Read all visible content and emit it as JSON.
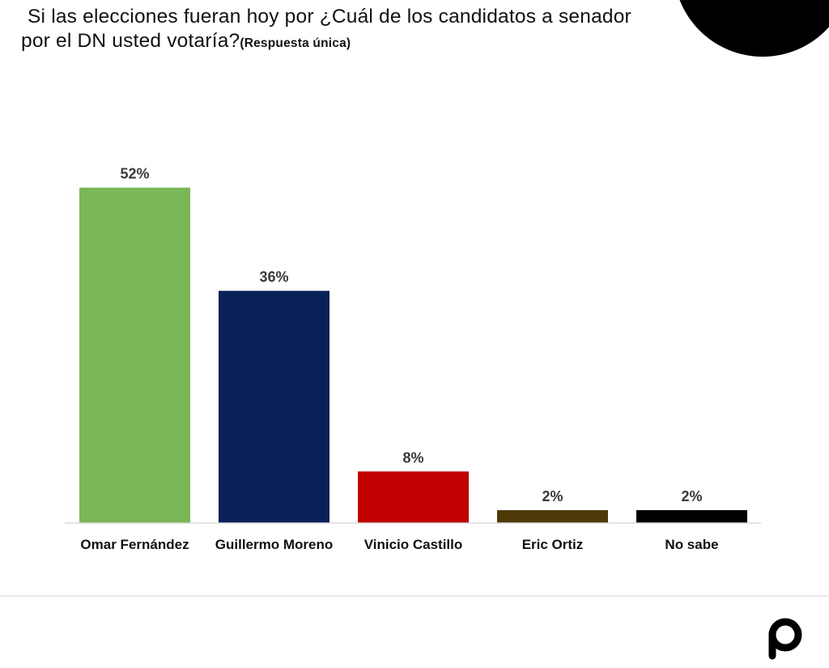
{
  "title": {
    "line1": "Si las elecciones fueran hoy por ¿Cuál de los candidatos a senador",
    "line2": "por el DN usted votaría?",
    "subtitle": "(Respuesta única)"
  },
  "chart_data": {
    "type": "bar",
    "categories": [
      "Omar Fernández",
      "Guillermo Moreno",
      "Vinicio Castillo",
      "Eric Ortiz",
      "No sabe"
    ],
    "values": [
      52,
      36,
      8,
      2,
      2
    ],
    "value_labels": [
      "52%",
      "36%",
      "8%",
      "2%",
      "2%"
    ],
    "colors": [
      "#7ab756",
      "#0a2158",
      "#c00000",
      "#4d3a08",
      "#000000"
    ],
    "ylim": [
      0,
      60
    ],
    "grid": false,
    "legend": "none"
  },
  "brand": {
    "logo_icon": "p-logo-icon",
    "corner_color": "#000000"
  }
}
